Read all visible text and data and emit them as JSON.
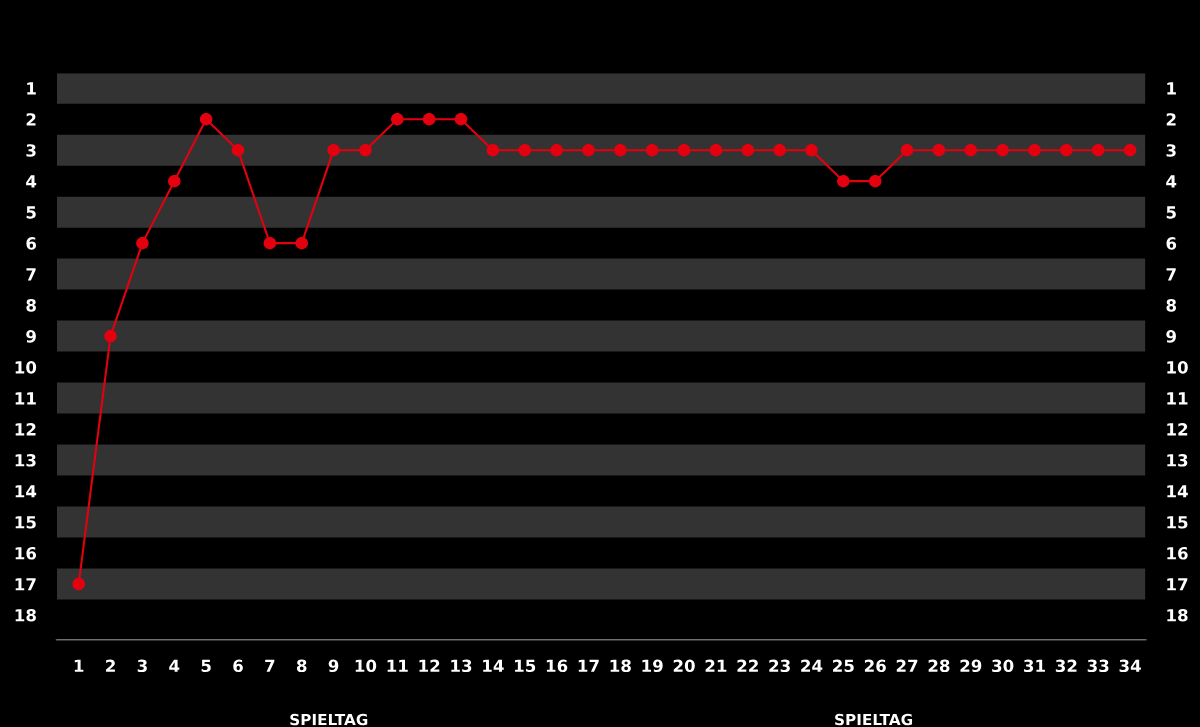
{
  "chart_data": {
    "type": "line",
    "xlabel": "SPIELTAG",
    "annotations": [
      "SPIELTAG"
    ],
    "categories": [
      "1",
      "2",
      "3",
      "4",
      "5",
      "6",
      "7",
      "8",
      "9",
      "10",
      "11",
      "12",
      "13",
      "14",
      "15",
      "16",
      "17",
      "18",
      "19",
      "20",
      "21",
      "22",
      "23",
      "24",
      "25",
      "26",
      "27",
      "28",
      "29",
      "30",
      "31",
      "32",
      "33",
      "34"
    ],
    "series": [
      {
        "color": "#e3000f",
        "values": [
          17,
          9,
          6,
          4,
          2,
          3,
          6,
          6,
          3,
          3,
          2,
          2,
          2,
          3,
          3,
          3,
          3,
          3,
          3,
          3,
          3,
          3,
          3,
          3,
          4,
          4,
          3,
          3,
          3,
          3,
          3,
          3,
          3,
          3
        ]
      }
    ],
    "ylim": [
      18.8,
      0.5
    ],
    "yticks": [
      1,
      2,
      3,
      4,
      5,
      6,
      7,
      8,
      9,
      10,
      11,
      12,
      13,
      14,
      15,
      16,
      17,
      18
    ],
    "y2lim": [
      18.8,
      0.5
    ],
    "y2ticks": [
      1,
      2,
      3,
      4,
      5,
      6,
      7,
      8,
      9,
      10,
      11,
      12,
      13,
      14,
      15,
      16,
      17,
      18
    ],
    "bands": [
      {
        "axis": "y",
        "from": 0.5,
        "to": 1.5,
        "color": "#333333"
      },
      {
        "axis": "y",
        "from": 2.5,
        "to": 3.5,
        "color": "#333333"
      },
      {
        "axis": "y",
        "from": 4.5,
        "to": 5.5,
        "color": "#333333"
      },
      {
        "axis": "y",
        "from": 6.5,
        "to": 7.5,
        "color": "#333333"
      },
      {
        "axis": "y",
        "from": 8.5,
        "to": 9.5,
        "color": "#333333"
      },
      {
        "axis": "y",
        "from": 10.5,
        "to": 11.5,
        "color": "#333333"
      },
      {
        "axis": "y",
        "from": 12.5,
        "to": 13.5,
        "color": "#333333"
      },
      {
        "axis": "y",
        "from": 14.5,
        "to": 15.5,
        "color": "#333333"
      },
      {
        "axis": "y",
        "from": 16.5,
        "to": 17.5,
        "color": "#333333"
      }
    ],
    "marker": "circle",
    "line_style": "solid",
    "grid": false,
    "legend": false
  }
}
